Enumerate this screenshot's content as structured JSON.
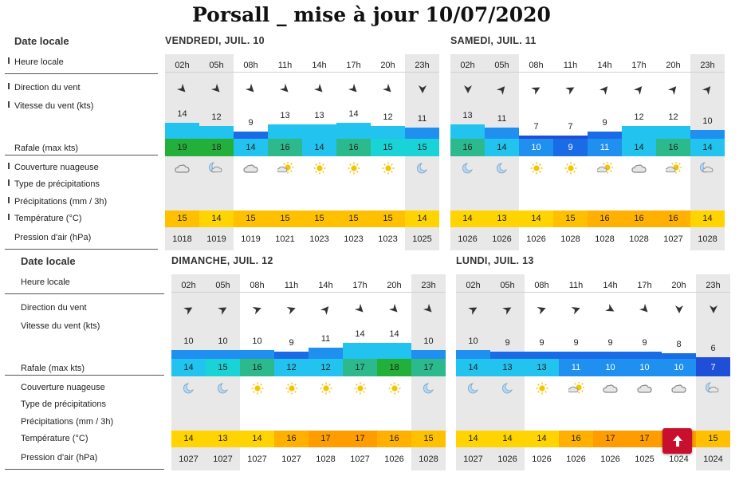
{
  "title": "Porsall _ mise à jour 10/07/2020",
  "labels": {
    "date": "Date locale",
    "hour": "Heure locale",
    "dir": "Direction du vent",
    "speed": "Vitesse du vent  (kts)",
    "gust": "Rafale  (max kts)",
    "cloud": "Couverture nuageuse",
    "ptype": "Type de précipitations",
    "precip": "Précipitations  (mm / 3h)",
    "temp": "Température  (°C)",
    "pressure": "Pression d'air  (hPa)"
  },
  "scroll_top_icon": "arrow-up-icon",
  "colors": {
    "shade": "#e8e8e8",
    "wind_7": "#1f4fd6",
    "wind_9": "#1a6be6",
    "wind_11": "#1f8ff0",
    "wind_13": "#22c3ee",
    "wind_15": "#19d3d7",
    "wind_16": "#2cba8c",
    "wind_18": "#22b03a",
    "temp_13": "#ffd400",
    "temp_15": "#ffc000",
    "temp_16": "#ffb000",
    "temp_17": "#ff9d00"
  },
  "days": [
    {
      "name": "VENDREDI, JUIL. 10",
      "hours": [
        "02h",
        "05h",
        "08h",
        "11h",
        "14h",
        "17h",
        "20h",
        "23h"
      ],
      "dir": [
        315,
        315,
        315,
        315,
        315,
        315,
        315,
        0
      ],
      "speed": [
        14,
        12,
        9,
        13,
        13,
        14,
        12,
        11
      ],
      "gust": [
        19,
        18,
        14,
        16,
        14,
        16,
        15,
        15
      ],
      "cloud": [
        "cloud",
        "moon-cloud",
        "cloud",
        "sun-cloud",
        "sun",
        "sun",
        "sun",
        "moon"
      ],
      "temp": [
        15,
        14,
        15,
        15,
        15,
        15,
        15,
        14
      ],
      "pressure": [
        1018,
        1019,
        1019,
        1021,
        1023,
        1023,
        1023,
        1025
      ],
      "night": [
        1,
        1,
        0,
        0,
        0,
        0,
        0,
        1
      ]
    },
    {
      "name": "SAMEDI, JUIL. 11",
      "hours": [
        "02h",
        "05h",
        "08h",
        "11h",
        "14h",
        "17h",
        "20h",
        "23h"
      ],
      "dir": [
        0,
        220,
        240,
        240,
        220,
        220,
        220,
        220
      ],
      "speed": [
        13,
        11,
        7,
        7,
        9,
        12,
        12,
        10
      ],
      "gust": [
        16,
        14,
        10,
        9,
        11,
        14,
        16,
        14
      ],
      "cloud": [
        "moon",
        "moon",
        "sun",
        "sun",
        "sun-cloud",
        "cloud",
        "sun-cloud",
        "moon-cloud"
      ],
      "temp": [
        14,
        13,
        14,
        15,
        16,
        16,
        16,
        14
      ],
      "pressure": [
        1026,
        1026,
        1026,
        1028,
        1028,
        1028,
        1027,
        1028
      ],
      "night": [
        1,
        1,
        0,
        0,
        0,
        0,
        0,
        1
      ]
    },
    {
      "name": "DIMANCHE, JUIL. 12",
      "hours": [
        "02h",
        "05h",
        "08h",
        "11h",
        "14h",
        "17h",
        "20h",
        "23h"
      ],
      "dir": [
        240,
        240,
        250,
        250,
        220,
        315,
        315,
        315
      ],
      "speed": [
        10,
        10,
        10,
        9,
        11,
        14,
        14,
        10
      ],
      "gust": [
        14,
        15,
        16,
        12,
        12,
        17,
        18,
        17
      ],
      "cloud": [
        "moon",
        "moon",
        "sun",
        "sun",
        "sun",
        "sun",
        "sun",
        "moon"
      ],
      "temp": [
        14,
        13,
        14,
        16,
        17,
        17,
        16,
        15
      ],
      "pressure": [
        1027,
        1027,
        1027,
        1027,
        1028,
        1027,
        1026,
        1028
      ],
      "night": [
        1,
        1,
        0,
        0,
        0,
        0,
        0,
        1
      ]
    },
    {
      "name": "LUNDI, JUIL. 13",
      "hours": [
        "02h",
        "05h",
        "08h",
        "11h",
        "14h",
        "17h",
        "20h",
        "23h"
      ],
      "dir": [
        240,
        240,
        250,
        250,
        300,
        315,
        0,
        0
      ],
      "speed": [
        10,
        9,
        9,
        9,
        9,
        9,
        8,
        6
      ],
      "gust": [
        14,
        13,
        13,
        11,
        10,
        10,
        10,
        7
      ],
      "cloud": [
        "moon",
        "moon",
        "sun",
        "sun-cloud",
        "cloud",
        "cloud",
        "cloud",
        "moon-cloud"
      ],
      "temp": [
        14,
        14,
        14,
        16,
        17,
        17,
        17,
        15
      ],
      "pressure": [
        1027,
        1026,
        1026,
        1026,
        1026,
        1025,
        1024,
        1024
      ],
      "night": [
        1,
        1,
        0,
        0,
        0,
        0,
        0,
        1
      ]
    }
  ]
}
